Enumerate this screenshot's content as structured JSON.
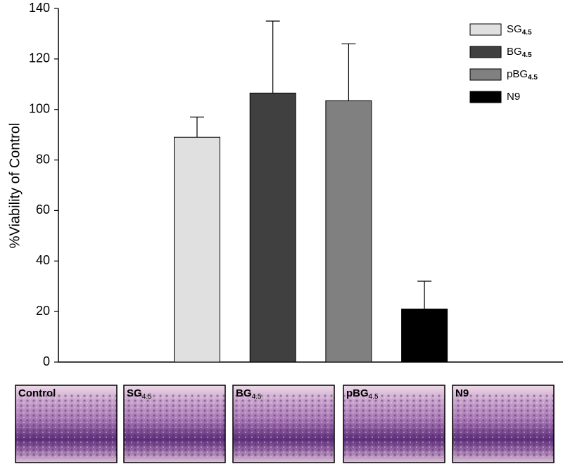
{
  "chart_data": {
    "type": "bar",
    "y_label": "%Viability of Control",
    "ylim": [
      0,
      140
    ],
    "yticks": [
      0,
      20,
      40,
      60,
      80,
      100,
      120,
      140
    ],
    "legend": "upper right",
    "series": [
      {
        "name": "SG",
        "subscript": "4.5",
        "color": "#e0e0e0",
        "values": [
          89
        ],
        "errors": [
          8
        ]
      },
      {
        "name": "BG",
        "subscript": "4.5",
        "color": "#404040",
        "values": [
          106.5
        ],
        "errors": [
          28.5
        ]
      },
      {
        "name": "pBG",
        "subscript": "4.5",
        "color": "#808080",
        "values": [
          103.5
        ],
        "errors": [
          22.5
        ]
      },
      {
        "name": "N9",
        "color": "#000000",
        "values": [
          21
        ],
        "errors": [
          11
        ]
      }
    ]
  },
  "panels": [
    {
      "label": "Control"
    },
    {
      "label": "SG",
      "subscript": "4.5"
    },
    {
      "label": "BG",
      "subscript": "4.5"
    },
    {
      "label": "pBG",
      "subscript": "4.5"
    },
    {
      "label": "N9"
    }
  ]
}
